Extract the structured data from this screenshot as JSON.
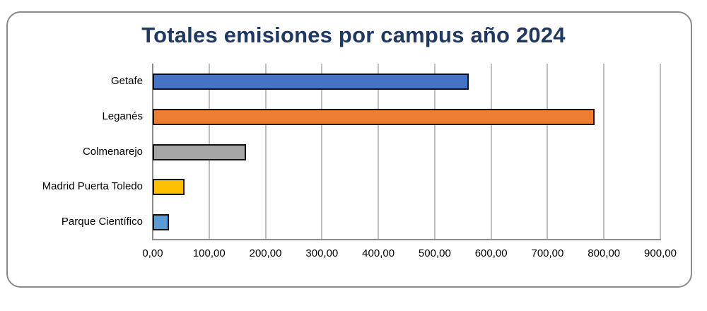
{
  "chart_data": {
    "type": "bar",
    "orientation": "horizontal",
    "title": "Totales emisiones por campus año 2024",
    "xlabel": "",
    "ylabel": "",
    "categories": [
      "Getafe",
      "Leganés",
      "Colmenarejo",
      "Madrid Puerta Toledo",
      "Parque Científico"
    ],
    "values": [
      560,
      783,
      165,
      57,
      29
    ],
    "colors": [
      "#4472c4",
      "#ed7d31",
      "#a5a5a5",
      "#ffc000",
      "#5b9bd5"
    ],
    "xlim": [
      0,
      900
    ],
    "xticks": [
      "0,00",
      "100,00",
      "200,00",
      "300,00",
      "400,00",
      "500,00",
      "600,00",
      "700,00",
      "800,00",
      "900,00"
    ],
    "grid": "vertical",
    "legend": "none"
  }
}
